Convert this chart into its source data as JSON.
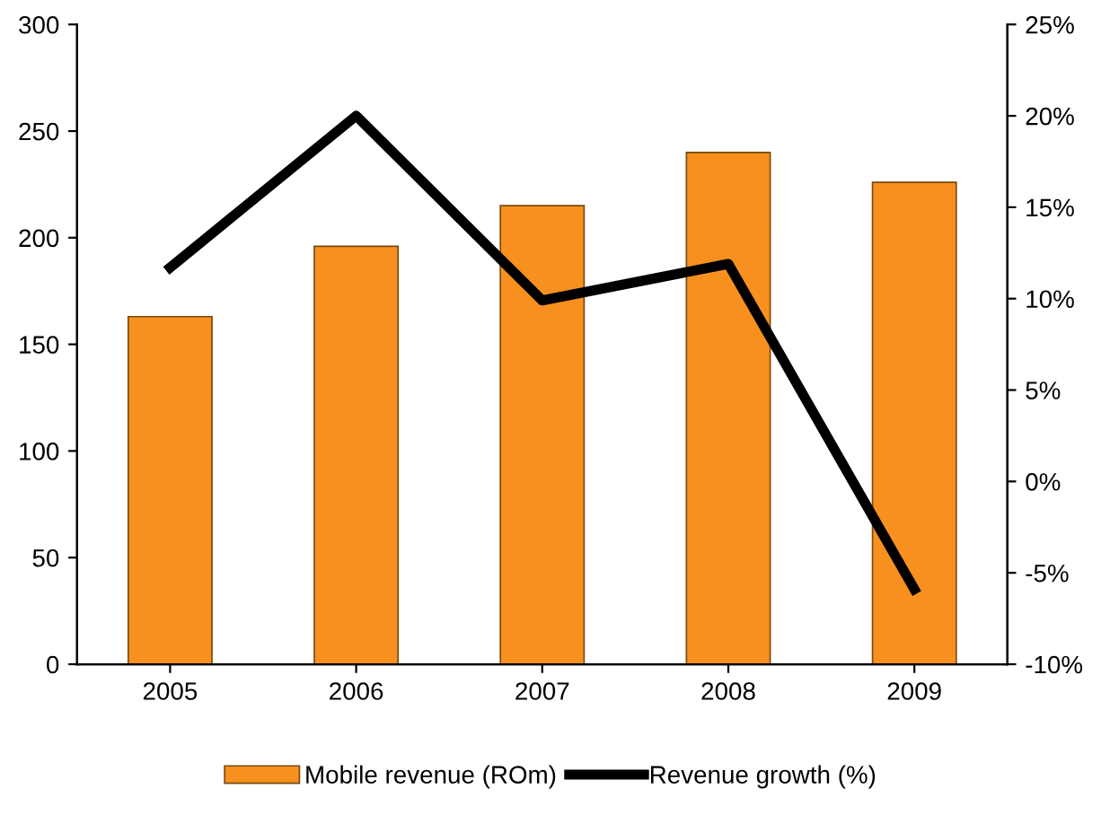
{
  "chart_data": {
    "type": "bar",
    "categories": [
      "2005",
      "2006",
      "2007",
      "2008",
      "2009"
    ],
    "series": [
      {
        "name": "Mobile revenue (ROm)",
        "color": "#f7901e",
        "values": [
          163,
          196,
          215,
          240,
          226
        ]
      },
      {
        "name": "Revenue growth (%)",
        "type": "line",
        "axis": "y2",
        "color": "#000000",
        "values": [
          11.7,
          20.0,
          9.9,
          11.9,
          -5.9
        ]
      }
    ],
    "ylim": [
      0,
      300
    ],
    "yticks": [
      0,
      50,
      100,
      150,
      200,
      250,
      300
    ],
    "y2lim": [
      -10,
      25
    ],
    "y2ticks": [
      {
        "value": -10,
        "label": "-10%"
      },
      {
        "value": -5,
        "label": "-5%"
      },
      {
        "value": 0,
        "label": "0%"
      },
      {
        "value": 5,
        "label": "5%"
      },
      {
        "value": 10,
        "label": "10%"
      },
      {
        "value": 15,
        "label": "15%"
      },
      {
        "value": 20,
        "label": "20%"
      },
      {
        "value": 25,
        "label": "25%"
      }
    ],
    "legend": "bottom",
    "grid": false,
    "marker": "none",
    "line_style": "solid"
  }
}
